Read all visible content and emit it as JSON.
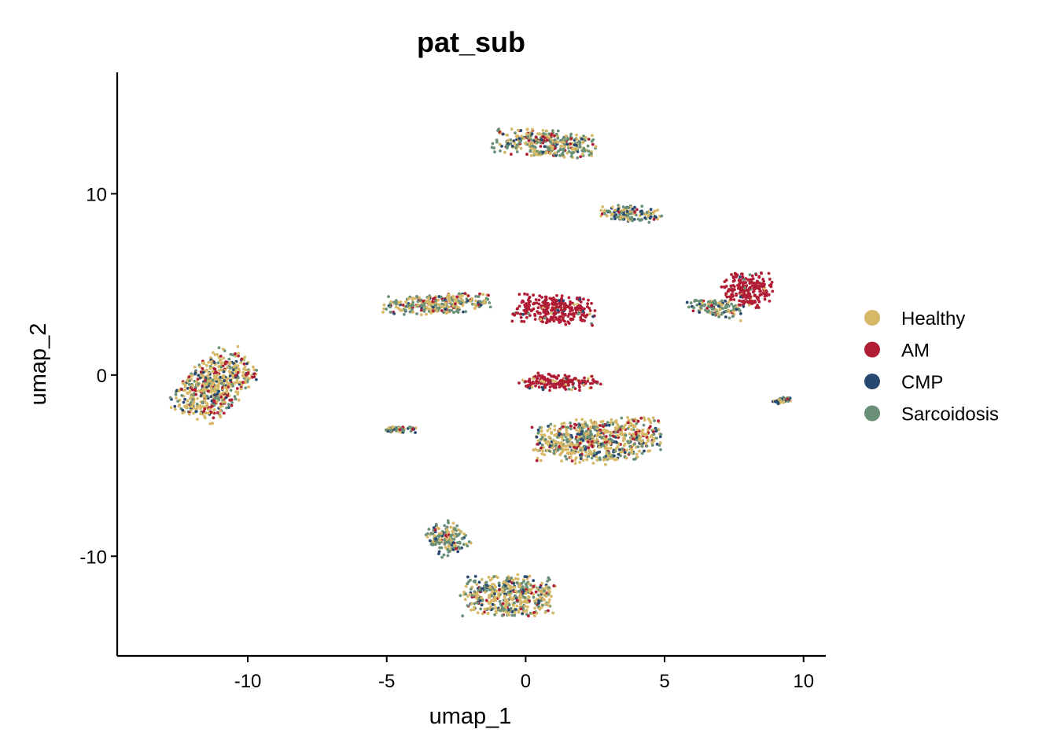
{
  "chart_data": {
    "type": "scatter",
    "title": "pat_sub",
    "xlabel": "umap_1",
    "ylabel": "umap_2",
    "xlim": [
      -14.7,
      10.8
    ],
    "ylim": [
      -15.5,
      16.7
    ],
    "xticks": [
      -10,
      -5,
      0,
      5,
      10
    ],
    "yticks": [
      -10,
      0,
      10
    ],
    "xtick_labels": [
      "-10",
      "-5",
      "0",
      "5",
      "10"
    ],
    "ytick_labels": [
      "-10",
      "0",
      "10"
    ],
    "grid": false,
    "legend_position": "right",
    "series": [
      {
        "name": "Healthy",
        "color": "#D7B866"
      },
      {
        "name": "AM",
        "color": "#B01D35"
      },
      {
        "name": "CMP",
        "color": "#274870"
      },
      {
        "name": "Sarcoidosis",
        "color": "#6A9077"
      }
    ],
    "clusters": [
      {
        "center": [
          -11.2,
          -0.6
        ],
        "spread": [
          1.1,
          2.0
        ],
        "rotation": -30,
        "weights": [
          0.55,
          0.13,
          0.12,
          0.2
        ]
      },
      {
        "center": [
          0.7,
          12.8
        ],
        "spread": [
          1.9,
          0.75
        ],
        "rotation": -4,
        "weights": [
          0.38,
          0.1,
          0.1,
          0.42
        ]
      },
      {
        "center": [
          3.8,
          8.9
        ],
        "spread": [
          1.1,
          0.45
        ],
        "rotation": -10,
        "weights": [
          0.35,
          0.1,
          0.25,
          0.3
        ]
      },
      {
        "center": [
          -3.2,
          3.9
        ],
        "spread": [
          2.0,
          0.55
        ],
        "rotation": 3,
        "weights": [
          0.4,
          0.12,
          0.08,
          0.4
        ]
      },
      {
        "center": [
          1.0,
          3.6
        ],
        "spread": [
          1.5,
          0.8
        ],
        "rotation": -5,
        "weights": [
          0.05,
          0.88,
          0.03,
          0.04
        ]
      },
      {
        "center": [
          8.0,
          4.7
        ],
        "spread": [
          0.9,
          1.0
        ],
        "rotation": 0,
        "weights": [
          0.04,
          0.9,
          0.03,
          0.03
        ]
      },
      {
        "center": [
          6.8,
          3.7
        ],
        "spread": [
          1.1,
          0.45
        ],
        "rotation": -15,
        "weights": [
          0.25,
          0.15,
          0.2,
          0.4
        ]
      },
      {
        "center": [
          2.6,
          -3.6
        ],
        "spread": [
          2.3,
          1.2
        ],
        "rotation": 5,
        "weights": [
          0.52,
          0.12,
          0.12,
          0.24
        ]
      },
      {
        "center": [
          1.2,
          -0.4
        ],
        "spread": [
          1.5,
          0.45
        ],
        "rotation": 0,
        "weights": [
          0.1,
          0.8,
          0.05,
          0.05
        ]
      },
      {
        "center": [
          -0.6,
          -12.2
        ],
        "spread": [
          1.7,
          1.1
        ],
        "rotation": 0,
        "weights": [
          0.48,
          0.08,
          0.12,
          0.32
        ]
      },
      {
        "center": [
          -2.8,
          -9.0
        ],
        "spread": [
          0.7,
          0.9
        ],
        "rotation": 25,
        "weights": [
          0.3,
          0.08,
          0.12,
          0.5
        ]
      },
      {
        "center": [
          -4.5,
          -3.0
        ],
        "spread": [
          0.55,
          0.18
        ],
        "rotation": 0,
        "weights": [
          0.3,
          0.1,
          0.2,
          0.4
        ]
      },
      {
        "center": [
          9.2,
          -1.4
        ],
        "spread": [
          0.35,
          0.15
        ],
        "rotation": 15,
        "weights": [
          0.3,
          0.1,
          0.3,
          0.3
        ]
      }
    ]
  }
}
